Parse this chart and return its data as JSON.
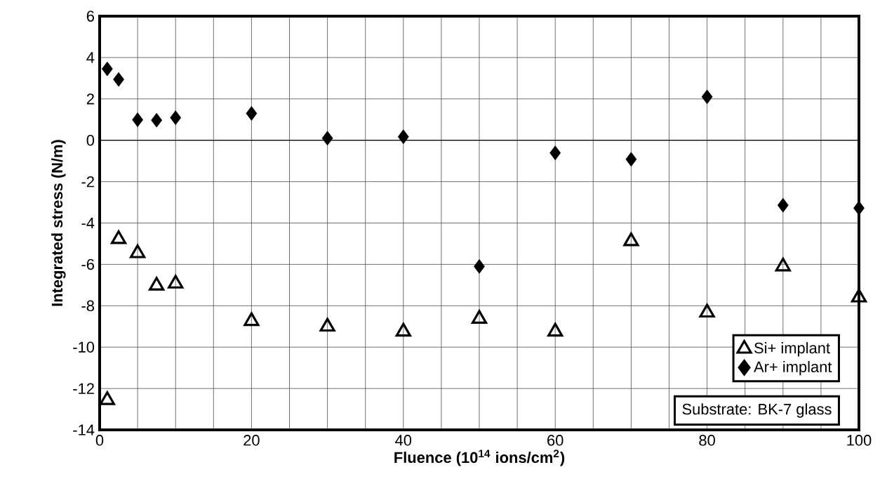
{
  "chart_data": {
    "type": "scatter",
    "xlabel": "Fluence (10$^{14}$ ions/cm$^{2}$)",
    "ylabel": "Integrated stress (N/m)",
    "xlim": [
      0,
      100
    ],
    "ylim": [
      -14,
      6
    ],
    "xticks": [
      0,
      {
        "value": 5,
        "label": null
      },
      {
        "value": 10,
        "label": null
      },
      {
        "value": 15,
        "label": null
      },
      20,
      {
        "value": 25,
        "label": null
      },
      {
        "value": 30,
        "label": null
      },
      {
        "value": 35,
        "label": null
      },
      40,
      {
        "value": 45,
        "label": null
      },
      {
        "value": 50,
        "label": null
      },
      {
        "value": 55,
        "label": null
      },
      60,
      {
        "value": 65,
        "label": null
      },
      {
        "value": 70,
        "label": null
      },
      {
        "value": 75,
        "label": null
      },
      80,
      {
        "value": 85,
        "label": null
      },
      {
        "value": 90,
        "label": null
      },
      {
        "value": 95,
        "label": null
      },
      100
    ],
    "yticks": [
      -14,
      -12,
      -10,
      -8,
      -6,
      -4,
      -2,
      0,
      2,
      4,
      6
    ],
    "x": [
      1,
      2.5,
      5,
      7.5,
      10,
      20,
      30,
      40,
      50,
      60,
      70,
      80,
      90,
      100
    ],
    "series": [
      {
        "name": "Si+ implant",
        "color": "#000000",
        "marker": "triangle",
        "values": [
          -12.56,
          -4.78,
          -5.46,
          -7.03,
          -6.93,
          -8.74,
          -9.01,
          -9.25,
          -8.63,
          -9.25,
          -4.88,
          -8.33,
          -6.1,
          -7.6
        ]
      },
      {
        "name": "Ar+ implant",
        "color": "#000000",
        "marker": "diamond",
        "values": [
          3.45,
          2.94,
          0.99,
          0.97,
          1.09,
          1.3,
          0.1,
          0.17,
          -6.1,
          -0.61,
          -0.92,
          2.1,
          -3.14,
          -3.28
        ]
      }
    ],
    "grid": true,
    "legend": "bottom right",
    "annotations": [
      "Substrate: BK-7 glass"
    ]
  }
}
